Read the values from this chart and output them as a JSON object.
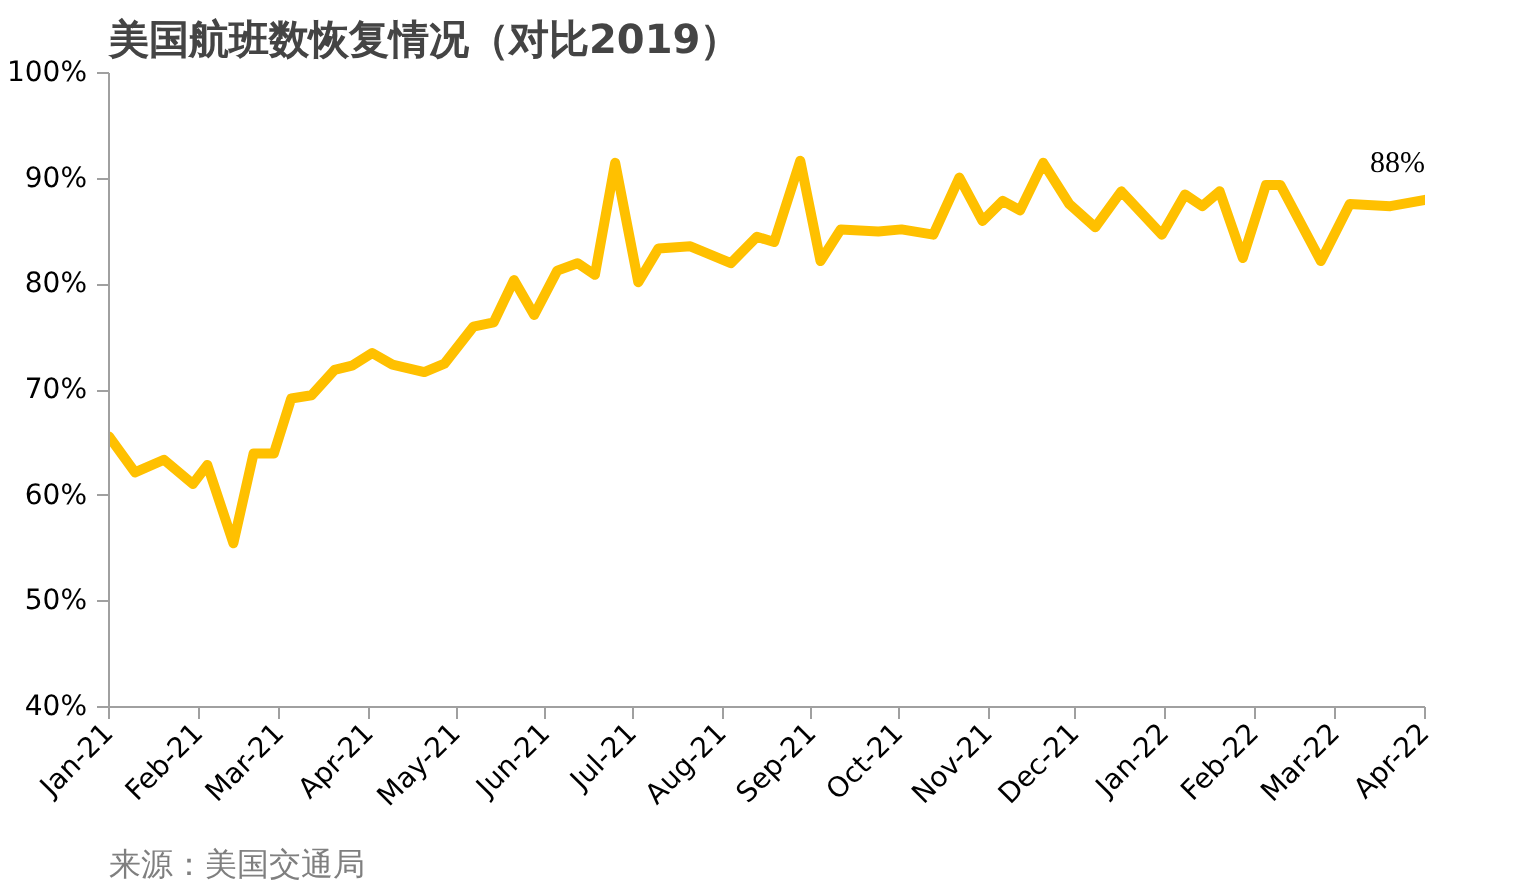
{
  "chart_data": {
    "type": "line",
    "title": "美国航班数恢复情况（对比2019）",
    "annotations": [
      "来源：美国交通局"
    ],
    "x": [
      "2021-01-01",
      "2021-01-10",
      "2021-01-20",
      "2021-01-30",
      "2021-02-04",
      "2021-02-13",
      "2021-02-20",
      "2021-02-27",
      "2021-03-05",
      "2021-03-12",
      "2021-03-20",
      "2021-03-26",
      "2021-04-02",
      "2021-04-09",
      "2021-04-20",
      "2021-04-27",
      "2021-05-07",
      "2021-05-14",
      "2021-05-21",
      "2021-05-28",
      "2021-06-05",
      "2021-06-12",
      "2021-06-18",
      "2021-06-25",
      "2021-07-03",
      "2021-07-10",
      "2021-07-21",
      "2021-08-04",
      "2021-08-13",
      "2021-08-19",
      "2021-08-28",
      "2021-09-04",
      "2021-09-11",
      "2021-09-24",
      "2021-10-02",
      "2021-10-13",
      "2021-10-22",
      "2021-10-30",
      "2021-11-06",
      "2021-11-12",
      "2021-11-20",
      "2021-11-29",
      "2021-12-08",
      "2021-12-17",
      "2021-12-31",
      "2022-01-08",
      "2022-01-14",
      "2022-01-20",
      "2022-01-28",
      "2022-02-05",
      "2022-02-10",
      "2022-02-24",
      "2022-03-06",
      "2022-03-20",
      "2022-04-01"
    ],
    "series": [
      {
        "color": "#ffc000",
        "values": [
          65.6,
          62.2,
          63.4,
          61.1,
          62.9,
          55.5,
          64,
          64,
          69.2,
          69.5,
          71.9,
          72.3,
          73.5,
          72.4,
          71.7,
          72.5,
          76,
          76.4,
          80.4,
          77.1,
          81.3,
          82,
          80.9,
          91.5,
          80.2,
          83.4,
          83.6,
          82,
          84.5,
          84,
          91.7,
          82.2,
          85.2,
          85,
          85.2,
          84.7,
          90.1,
          86,
          87.9,
          87,
          91.5,
          87.6,
          85.4,
          88.8,
          84.7,
          88.5,
          87.4,
          88.8,
          82.5,
          89.4,
          89.4,
          82.2,
          87.6,
          87.4,
          88
        ],
        "value_labels": [
          null,
          null,
          null,
          null,
          null,
          null,
          null,
          null,
          null,
          null,
          null,
          null,
          null,
          null,
          null,
          null,
          null,
          null,
          null,
          null,
          null,
          null,
          null,
          null,
          null,
          null,
          null,
          null,
          null,
          null,
          null,
          null,
          null,
          null,
          null,
          null,
          null,
          null,
          null,
          null,
          null,
          null,
          null,
          null,
          null,
          null,
          null,
          null,
          null,
          null,
          null,
          null,
          null,
          null,
          "88%"
        ]
      }
    ],
    "xlim": [
      "2021-01-01",
      "2022-04-01"
    ],
    "xticks": [
      {
        "value": "2021-01-01",
        "label": "Jan-21"
      },
      {
        "value": "2021-02-01",
        "label": "Feb-21"
      },
      {
        "value": "2021-03-01",
        "label": "Mar-21"
      },
      {
        "value": "2021-04-01",
        "label": "Apr-21"
      },
      {
        "value": "2021-05-01",
        "label": "May-21"
      },
      {
        "value": "2021-06-01",
        "label": "Jun-21"
      },
      {
        "value": "2021-07-01",
        "label": "Jul-21"
      },
      {
        "value": "2021-08-01",
        "label": "Aug-21"
      },
      {
        "value": "2021-09-01",
        "label": "Sep-21"
      },
      {
        "value": "2021-10-01",
        "label": "Oct-21"
      },
      {
        "value": "2021-11-01",
        "label": "Nov-21"
      },
      {
        "value": "2021-12-01",
        "label": "Dec-21"
      },
      {
        "value": "2022-01-01",
        "label": "Jan-22"
      },
      {
        "value": "2022-02-01",
        "label": "Feb-22"
      },
      {
        "value": "2022-03-01",
        "label": "Mar-22"
      },
      {
        "value": "2022-04-01",
        "label": "Apr-22"
      }
    ],
    "ylim": [
      40,
      100
    ],
    "yticks": [
      {
        "value": 40,
        "label": "40%"
      },
      {
        "value": 50,
        "label": "50%"
      },
      {
        "value": 60,
        "label": "60%"
      },
      {
        "value": 70,
        "label": "70%"
      },
      {
        "value": 80,
        "label": "80%"
      },
      {
        "value": 90,
        "label": "90%"
      },
      {
        "value": 100,
        "label": "100%"
      }
    ],
    "grid": false,
    "marker": "none",
    "line_style": "solid"
  }
}
